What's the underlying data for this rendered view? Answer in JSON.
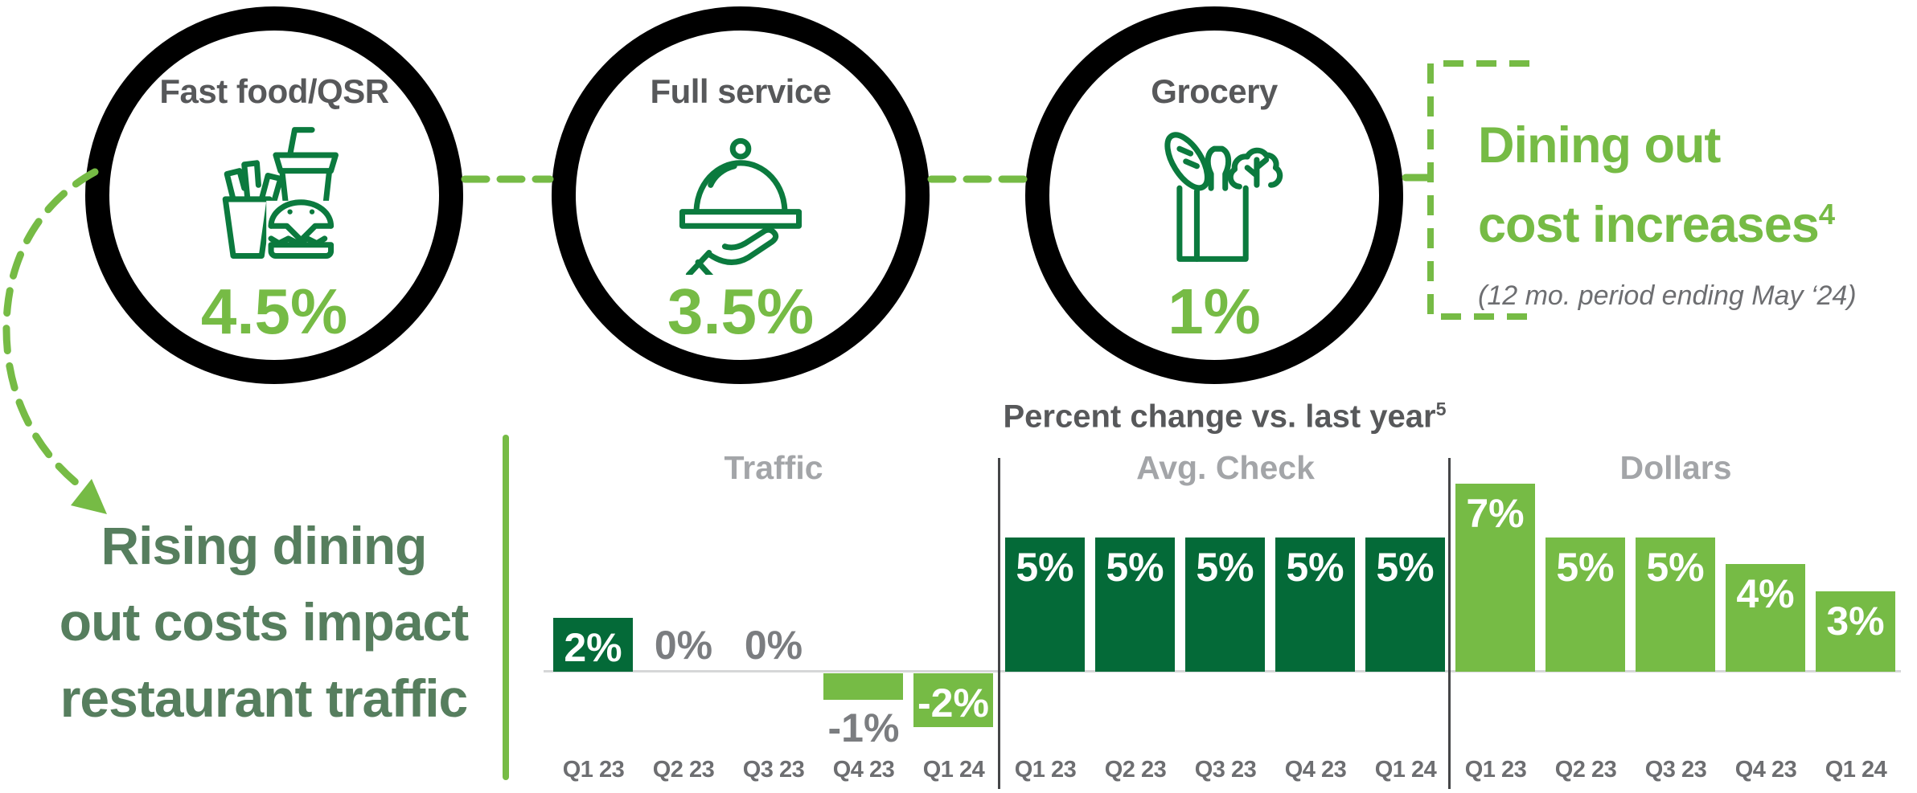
{
  "colors": {
    "dark_green_bar": "#046A38",
    "light_green": "#76BB45",
    "icon_green": "#0B7A3E",
    "headline_green": "#567E5E",
    "label_dark_gray": "#57585A",
    "text_gray": "#6D6E71",
    "section_label_gray": "#A3A5A8",
    "outside_value_gray": "#7B7D80",
    "circle_ring_black": "#000000"
  },
  "categories": [
    {
      "label": "Fast food/QSR",
      "icon": "fast-food-icon",
      "value": "4.5%"
    },
    {
      "label": "Full service",
      "icon": "cloche-icon",
      "value": "3.5%"
    },
    {
      "label": "Grocery",
      "icon": "grocery-bag-icon",
      "value": "1%"
    }
  ],
  "callout": {
    "title_line1": "Dining out",
    "title_line2": "cost increases",
    "title_superscript": "4",
    "subtitle": "(12 mo. period ending May ‘24)"
  },
  "headline": {
    "line1": "Rising dining",
    "line2": "out costs impact",
    "line3": "restaurant traffic"
  },
  "chart_data": {
    "type": "bar",
    "title": "Percent change vs. last year",
    "title_superscript": "5",
    "unit": "percent vs. last year",
    "ylim": [
      -2,
      7
    ],
    "pixels_per_percent": 33.4,
    "grid": false,
    "groups": [
      {
        "name": "Traffic",
        "categories": [
          "Q1 23",
          "Q2 23",
          "Q3 23",
          "Q4 23",
          "Q1 24"
        ],
        "values": [
          2,
          0,
          0,
          -1,
          -2
        ],
        "labels": [
          "2%",
          "0%",
          "0%",
          "-1%",
          "-2%"
        ],
        "positive_color": "#046A38",
        "negative_color": "#76BB45"
      },
      {
        "name": "Avg. Check",
        "categories": [
          "Q1 23",
          "Q2 23",
          "Q3 23",
          "Q4 23",
          "Q1 24"
        ],
        "values": [
          5,
          5,
          5,
          5,
          5
        ],
        "labels": [
          "5%",
          "5%",
          "5%",
          "5%",
          "5%"
        ],
        "positive_color": "#046A38",
        "negative_color": "#76BB45"
      },
      {
        "name": "Dollars",
        "categories": [
          "Q1 23",
          "Q2 23",
          "Q3 23",
          "Q4 23",
          "Q1 24"
        ],
        "values": [
          7,
          5,
          5,
          4,
          3
        ],
        "labels": [
          "7%",
          "5%",
          "5%",
          "4%",
          "3%"
        ],
        "positive_color": "#76BB45",
        "negative_color": "#76BB45"
      }
    ]
  }
}
